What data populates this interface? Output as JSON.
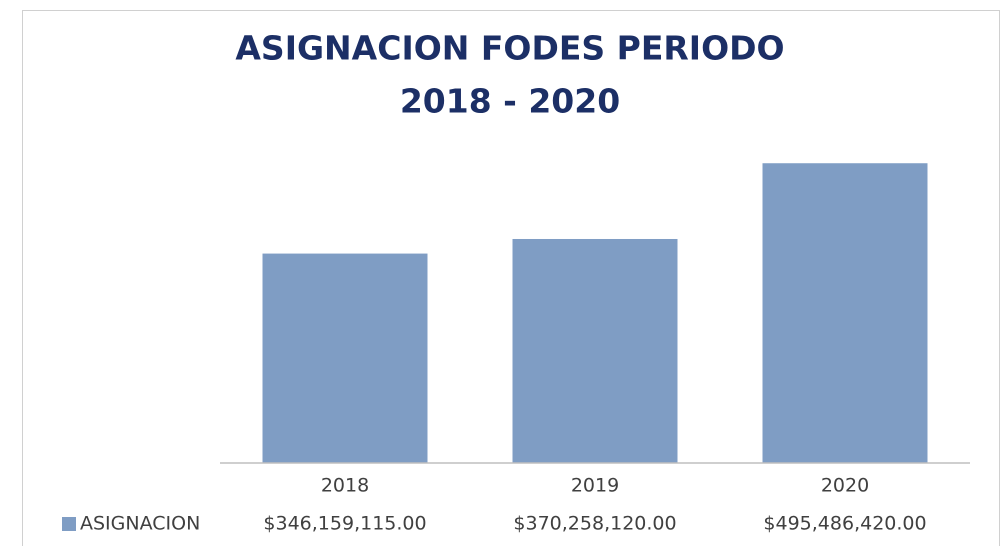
{
  "chart_data": {
    "type": "bar",
    "title": [
      "ASIGNACION FODES PERIODO",
      "2018 - 2020"
    ],
    "categories": [
      "2018",
      "2019",
      "2020"
    ],
    "series": [
      {
        "name": "ASIGNACION",
        "color": "#7f9dc4",
        "values": [
          346159115,
          370258120,
          495486420
        ],
        "value_labels": [
          "$346,159,115.00",
          "$370,258,120.00",
          "$495,486,420.00"
        ]
      }
    ],
    "ylim": [
      0,
      600000000
    ]
  }
}
